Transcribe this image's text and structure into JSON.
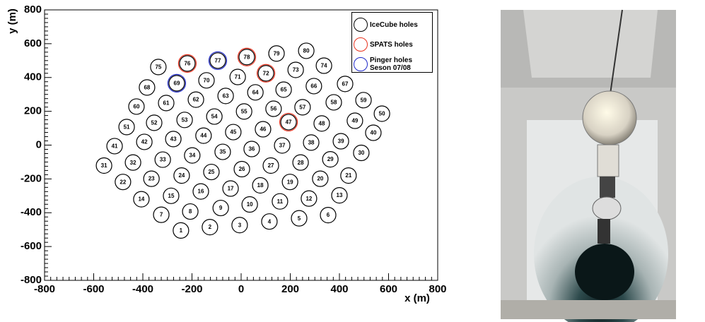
{
  "chart_data": {
    "type": "scatter",
    "xlabel": "x (m)",
    "ylabel": "y (m)",
    "xlim": [
      -800,
      800
    ],
    "ylim": [
      -800,
      800
    ],
    "xticks": [
      -800,
      -600,
      -400,
      -200,
      0,
      200,
      400,
      600,
      800
    ],
    "yticks": [
      -800,
      -600,
      -400,
      -200,
      0,
      200,
      400,
      600,
      800
    ],
    "legend": "upper right",
    "series": [
      {
        "name": "IceCube holes",
        "color": "#000000",
        "point_labels": [
          "1",
          "2",
          "3",
          "4",
          "5",
          "6",
          "7",
          "8",
          "9",
          "10",
          "11",
          "12",
          "13",
          "14",
          "15",
          "16",
          "17",
          "18",
          "19",
          "20",
          "21",
          "22",
          "23",
          "24",
          "25",
          "26",
          "27",
          "28",
          "29",
          "30",
          "31",
          "32",
          "33",
          "34",
          "35",
          "36",
          "37",
          "38",
          "39",
          "40",
          "41",
          "42",
          "43",
          "44",
          "45",
          "46",
          "47",
          "48",
          "49",
          "50",
          "51",
          "52",
          "53",
          "54",
          "55",
          "56",
          "57",
          "58",
          "59",
          "60",
          "61",
          "62",
          "63",
          "64",
          "65",
          "66",
          "67",
          "68",
          "69",
          "70",
          "71",
          "72",
          "73",
          "74",
          "75",
          "76",
          "77",
          "78",
          "79",
          "80"
        ],
        "x": [
          -245,
          -127,
          -6,
          115,
          236,
          354,
          -325,
          -207,
          -83,
          35,
          158,
          276,
          400,
          -406,
          -285,
          -164,
          -43,
          78,
          199,
          322,
          437,
          -481,
          -365,
          -242,
          -121,
          3,
          121,
          242,
          363,
          489,
          -558,
          -440,
          -319,
          -199,
          -75,
          43,
          167,
          285,
          406,
          538,
          -515,
          -394,
          -276,
          -153,
          -32,
          89,
          193,
          328,
          463,
          573,
          -466,
          -354,
          -230,
          -109,
          12,
          132,
          250,
          377,
          498,
          -426,
          -305,
          -184,
          -63,
          58,
          173,
          296,
          423,
          -383,
          -262,
          -141,
          -14,
          101,
          222,
          337,
          -337,
          -219,
          -95,
          23,
          144,
          265
        ],
        "values": [
          -505,
          -485,
          -473,
          -452,
          -433,
          -414,
          -412,
          -393,
          -372,
          -351,
          -333,
          -316,
          -297,
          -320,
          -300,
          -274,
          -257,
          -238,
          -218,
          -199,
          -180,
          -218,
          -199,
          -180,
          -159,
          -142,
          -121,
          -103,
          -84,
          -46,
          -121,
          -103,
          -86,
          -61,
          -40,
          -23,
          -2,
          15,
          23,
          73,
          -6,
          19,
          36,
          56,
          77,
          94,
          136,
          128,
          144,
          186,
          107,
          132,
          149,
          169,
          199,
          215,
          224,
          253,
          266,
          228,
          249,
          269,
          291,
          312,
          328,
          349,
          362,
          341,
          366,
          383,
          403,
          425,
          445,
          470,
          462,
          483,
          500,
          521,
          542,
          558
        ]
      },
      {
        "name": "SPATS holes",
        "color": "#e8321e",
        "x": [
          -219,
          23,
          101,
          193
        ],
        "values": [
          483,
          521,
          425,
          136
        ]
      },
      {
        "name": "Pinger holes Seson 07/08",
        "color": "#1e28c8",
        "x": [
          -262,
          -95
        ],
        "values": [
          366,
          500
        ]
      }
    ]
  }
}
